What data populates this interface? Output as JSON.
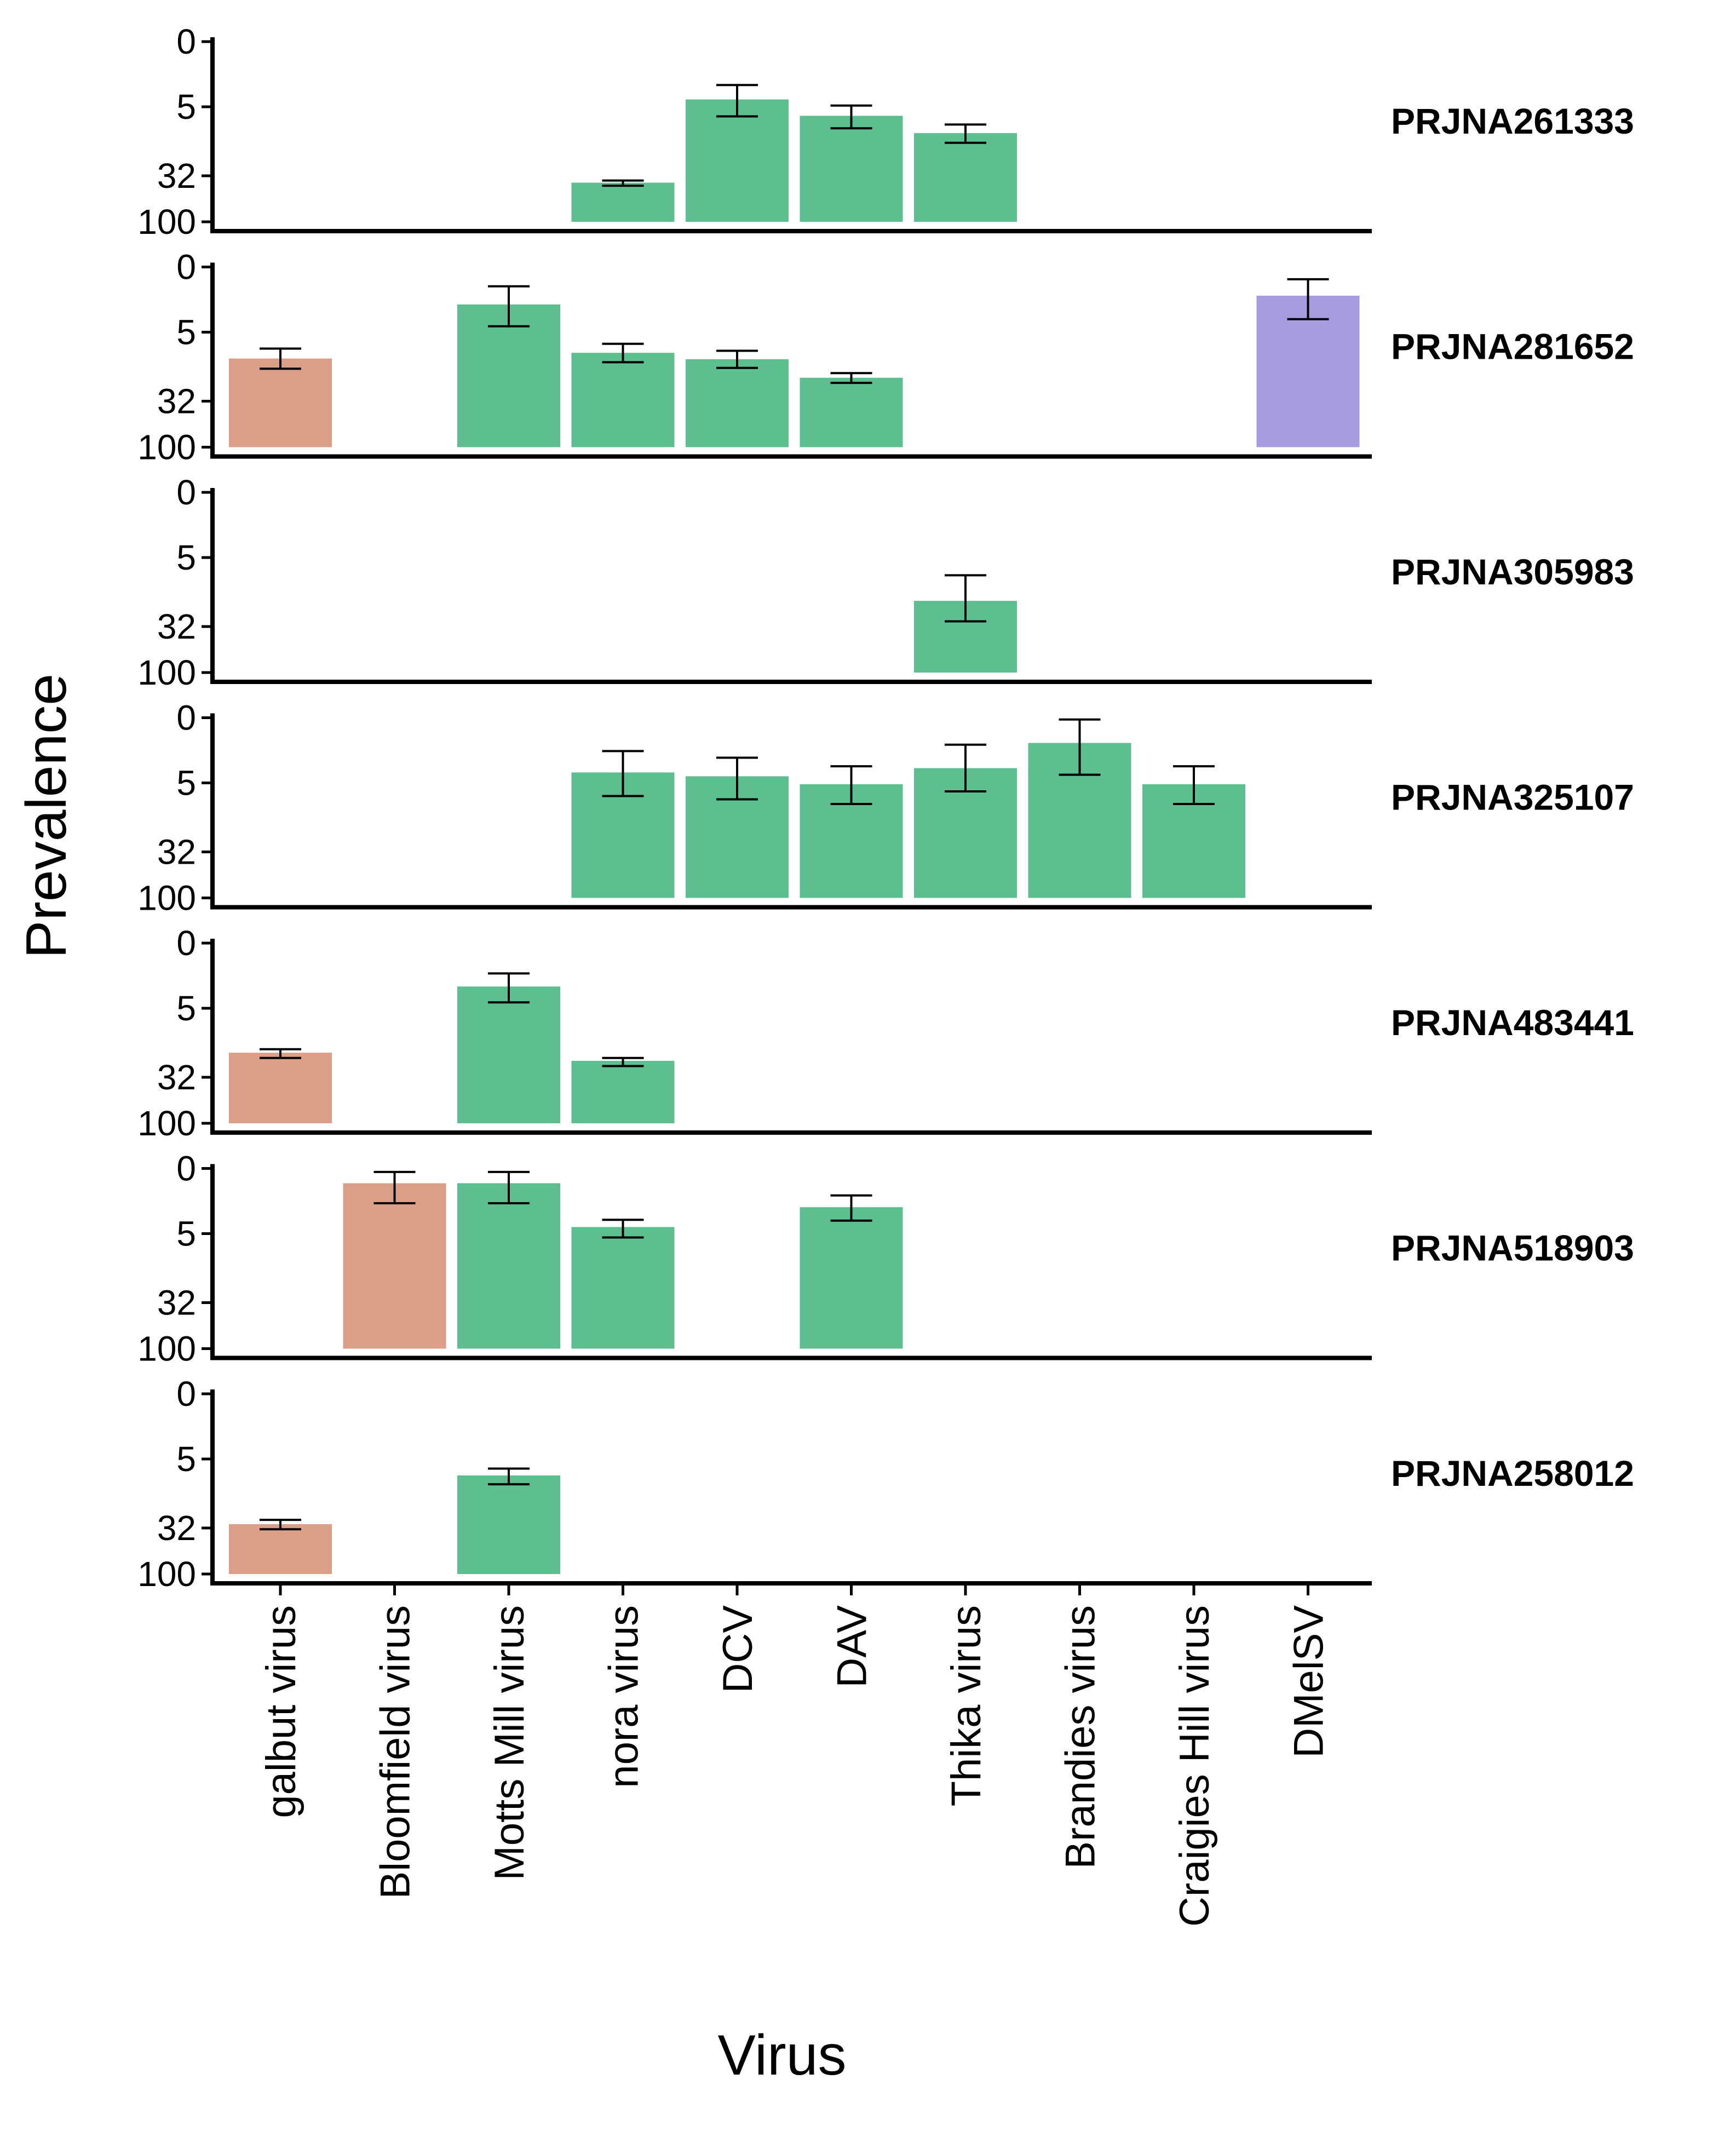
{
  "chart_data": {
    "type": "bar",
    "layout": "faceted",
    "xlabel": "Virus",
    "ylabel": "Prevalence",
    "y_scale": "pseudo-log",
    "y_ticks": [
      0,
      5,
      32,
      100
    ],
    "y_tick_labels": [
      "0",
      "5",
      "32",
      "100"
    ],
    "ylim": [
      0,
      100
    ],
    "categories": [
      "galbut virus",
      "Bloomfield virus",
      "Motts Mill virus",
      "nora virus",
      "DCV",
      "DAV",
      "Thika virus",
      "Brandies virus",
      "Craigies Hill virus",
      "DMelSV"
    ],
    "category_colors": [
      "#DB9E86",
      "#DB9E86",
      "#5DBE8F",
      "#5DBE8F",
      "#5DBE8F",
      "#5DBE8F",
      "#5DBE8F",
      "#5DBE8F",
      "#5DBE8F",
      "#A89CE0"
    ],
    "panels": [
      {
        "label": "PRJNA261333",
        "bars": [
          {
            "category": "nora virus",
            "value": 38,
            "err_low": 36,
            "err_high": 41
          },
          {
            "category": "DCV",
            "value": 3.9,
            "err_low": 2.3,
            "err_high": 6.6
          },
          {
            "category": "DAV",
            "value": 6.5,
            "err_low": 4.8,
            "err_high": 9.2
          },
          {
            "category": "Thika virus",
            "value": 10.5,
            "err_low": 8.3,
            "err_high": 13.6
          }
        ]
      },
      {
        "label": "PRJNA281652",
        "bars": [
          {
            "category": "galbut virus",
            "value": 10.5,
            "err_low": 8,
            "err_high": 13.8
          },
          {
            "category": "Motts Mill virus",
            "value": 1.8,
            "err_low": 0.7,
            "err_high": 4.1
          },
          {
            "category": "nora virus",
            "value": 9,
            "err_low": 7,
            "err_high": 11.6
          },
          {
            "category": "DCV",
            "value": 10.7,
            "err_low": 8.5,
            "err_high": 13.5
          },
          {
            "category": "DAV",
            "value": 17.5,
            "err_low": 15.5,
            "err_high": 20
          },
          {
            "category": "DMelSV",
            "value": 1.2,
            "err_low": 0.4,
            "err_high": 3.2
          }
        ]
      },
      {
        "label": "PRJNA305983",
        "bars": [
          {
            "category": "Thika virus",
            "value": 16.5,
            "err_low": 8.3,
            "err_high": 28
          }
        ]
      },
      {
        "label": "PRJNA325107",
        "bars": [
          {
            "category": "nora virus",
            "value": 3.5,
            "err_low": 1.5,
            "err_high": 7.3
          },
          {
            "category": "DCV",
            "value": 4,
            "err_low": 2,
            "err_high": 8
          },
          {
            "category": "DAV",
            "value": 5.2,
            "err_low": 2.8,
            "err_high": 9.1
          },
          {
            "category": "Thika virus",
            "value": 3,
            "err_low": 1.1,
            "err_high": 6.4
          },
          {
            "category": "Brandies virus",
            "value": 1,
            "err_low": 0.05,
            "err_high": 3.8
          },
          {
            "category": "Craigies Hill virus",
            "value": 5.2,
            "err_low": 2.8,
            "err_high": 9.1
          }
        ]
      },
      {
        "label": "PRJNA483441",
        "bars": [
          {
            "category": "galbut virus",
            "value": 17,
            "err_low": 15.5,
            "err_high": 19.5
          },
          {
            "category": "Motts Mill virus",
            "value": 2.3,
            "err_low": 1.3,
            "err_high": 4.1
          },
          {
            "category": "nora virus",
            "value": 21,
            "err_low": 19.5,
            "err_high": 24
          }
        ]
      },
      {
        "label": "PRJNA518903",
        "bars": [
          {
            "category": "Bloomfield virus",
            "value": 0.5,
            "err_low": 0.1,
            "err_high": 1.6
          },
          {
            "category": "Motts Mill virus",
            "value": 0.5,
            "err_low": 0.1,
            "err_high": 1.6
          },
          {
            "category": "nora virus",
            "value": 4,
            "err_low": 3.1,
            "err_high": 5.6
          },
          {
            "category": "DAV",
            "value": 1.9,
            "err_low": 1.1,
            "err_high": 3.2
          }
        ]
      },
      {
        "label": "PRJNA258012",
        "bars": [
          {
            "category": "galbut virus",
            "value": 29,
            "err_low": 26,
            "err_high": 33
          },
          {
            "category": "Motts Mill virus",
            "value": 8,
            "err_low": 6.6,
            "err_high": 10.2
          }
        ]
      }
    ]
  }
}
